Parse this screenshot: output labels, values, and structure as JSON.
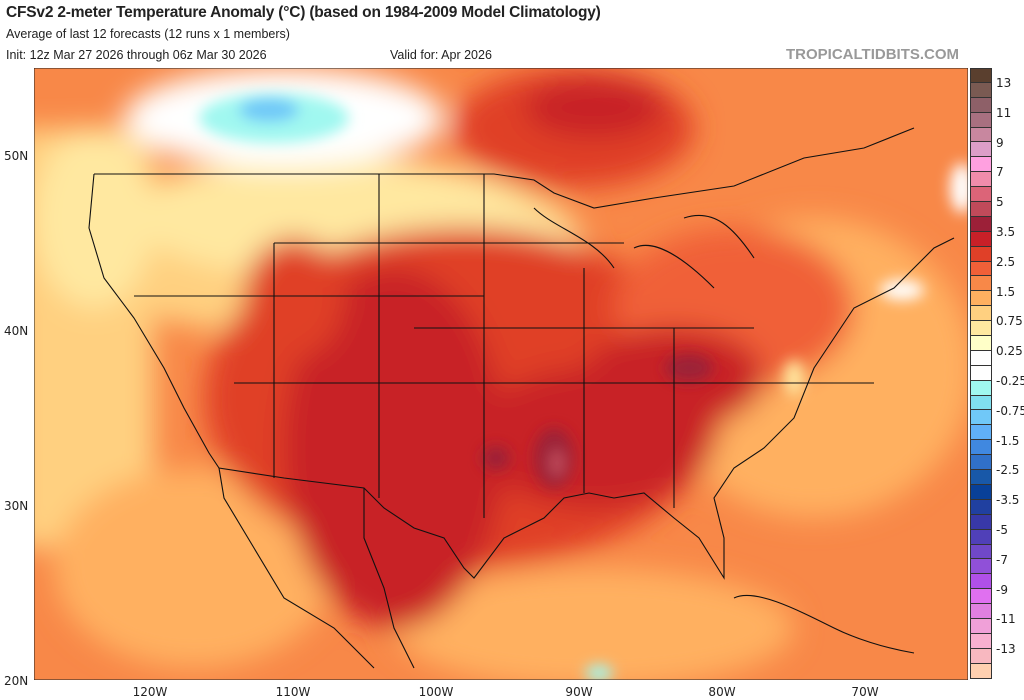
{
  "header": {
    "title": "CFSv2 2-meter Temperature Anomaly (°C) (based on 1984-2009 Model Climatology)",
    "subtitle": "Average of last 12 forecasts (12 runs x 1 members)",
    "init": "Init: 12z Mar 27 2026 through 06z Mar 30 2026",
    "valid": "Valid for: Apr 2026",
    "brand": "TROPICALTIDBITS.COM"
  },
  "axes": {
    "lat_labels": [
      "50N",
      "40N",
      "30N",
      "20N"
    ],
    "lon_labels": [
      "120W",
      "110W",
      "100W",
      "90W",
      "80W",
      "70W"
    ]
  },
  "colorbar": {
    "labels": [
      "13",
      "11",
      "9",
      "7",
      "5",
      "3.5",
      "2.5",
      "1.5",
      "0.75",
      "0.25",
      "-0.25",
      "-0.75",
      "-1.5",
      "-2.5",
      "-3.5",
      "-5",
      "-7",
      "-9",
      "-11",
      "-13"
    ],
    "colors": [
      "#5a3f2e",
      "#7a5a52",
      "#8e6068",
      "#a87080",
      "#c8879f",
      "#dc9ec8",
      "#ffa0e0",
      "#f08cab",
      "#dc6478",
      "#c04a5a",
      "#9c2038",
      "#c82028",
      "#e04028",
      "#f06038",
      "#f88848",
      "#ffb060",
      "#ffd080",
      "#ffe8a0",
      "#ffffc8",
      "#ffffff",
      "#ffffff",
      "#a0f8f0",
      "#80e0f0",
      "#70c8f8",
      "#60b0f8",
      "#4088e0",
      "#3070c8",
      "#1858a8",
      "#084098",
      "#2040a0",
      "#3838a8",
      "#5040b8",
      "#7048c8",
      "#9050d8",
      "#b050e8",
      "#e070f0",
      "#e080e0",
      "#f0a0d8",
      "#f8b0d0",
      "#f8b8c0",
      "#ffd0b0"
    ]
  }
}
